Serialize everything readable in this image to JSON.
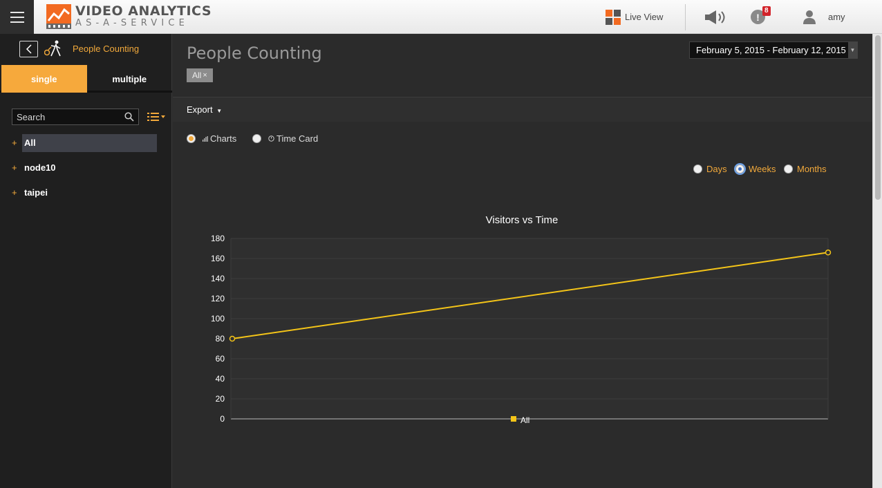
{
  "header": {
    "logo_line1": "VIDEO ANALYTICS",
    "logo_line2": "AS-A-SERVICE",
    "live_view_label": "Live View",
    "alert_count": "8",
    "username": "amy"
  },
  "sidebar": {
    "title": "People Counting",
    "tabs": [
      {
        "label": "single"
      },
      {
        "label": "multiple"
      }
    ],
    "search_placeholder": "Search",
    "tree": [
      {
        "label": "All"
      },
      {
        "label": "node10"
      },
      {
        "label": "taipei"
      }
    ]
  },
  "main": {
    "title": "People Counting",
    "filter_chip": "All",
    "date_range": "February 5, 2015 - February 12, 2015",
    "export_label": "Export",
    "view_options": [
      {
        "label": "Charts"
      },
      {
        "label": "Time Card"
      }
    ],
    "period_options": [
      {
        "label": "Days"
      },
      {
        "label": "Weeks"
      },
      {
        "label": "Months"
      }
    ],
    "selected_view": "Charts",
    "selected_period": "Weeks"
  },
  "colors": {
    "accent": "#f6a93c",
    "series": "#f5c518"
  },
  "chart_data": {
    "type": "line",
    "title": "Visitors vs Time",
    "x": [
      0,
      1
    ],
    "series": [
      {
        "name": "All",
        "values": [
          80,
          166
        ]
      }
    ],
    "ylim": [
      0,
      180
    ],
    "yticks": [
      0,
      20,
      40,
      60,
      80,
      100,
      120,
      140,
      160,
      180
    ],
    "grid": true,
    "legend": "bottom"
  }
}
